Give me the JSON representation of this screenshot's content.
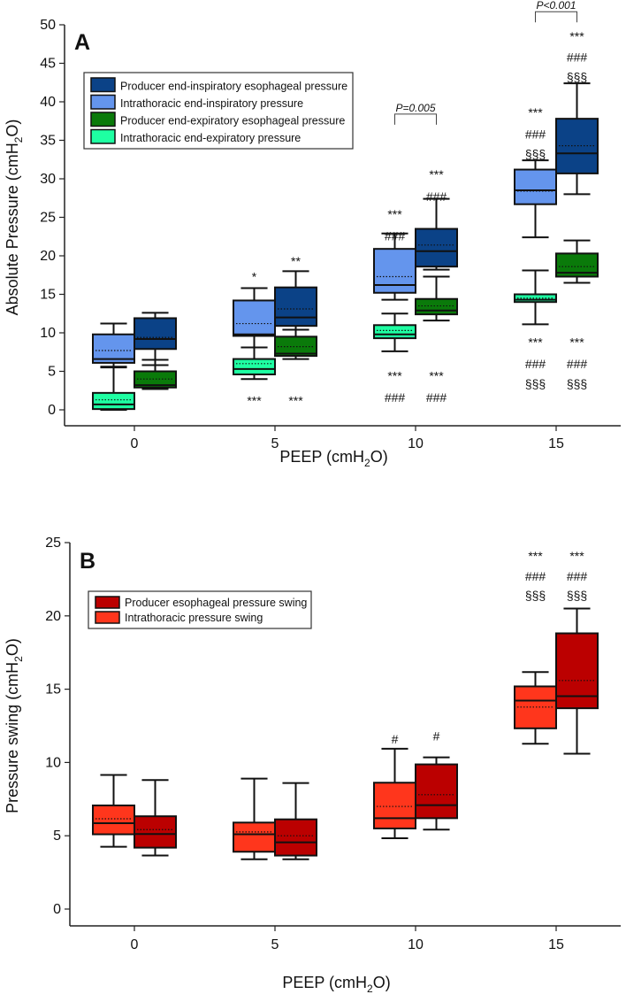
{
  "chart_data": [
    {
      "type": "box",
      "panel_label": "A",
      "ylabel": {
        "pre": "Absolute Pressure (cmH",
        "sub": "2",
        "post": "O)"
      },
      "xlabel": {
        "pre": "PEEP (cmH",
        "sub": "2",
        "post": "O)"
      },
      "categories": [
        "0",
        "5",
        "10",
        "15"
      ],
      "ylim": [
        0,
        50
      ],
      "yticks": [
        0,
        5,
        10,
        15,
        20,
        25,
        30,
        35,
        40,
        45,
        50
      ],
      "legend_position": "top-left",
      "series": [
        {
          "name": "Producer end-inspiratory esophageal pressure",
          "color": "#0b4287",
          "side": "right",
          "boxes": [
            {
              "whislo": 5.8,
              "q1": 7.9,
              "med": 9.2,
              "q3": 11.9,
              "whishi": 12.6,
              "mean": 9.4
            },
            {
              "whislo": 10.4,
              "q1": 10.9,
              "med": 12.0,
              "q3": 15.9,
              "whishi": 18.0,
              "mean": 13.1
            },
            {
              "whislo": 18.2,
              "q1": 18.6,
              "med": 20.6,
              "q3": 23.5,
              "whishi": 27.4,
              "mean": 21.4
            },
            {
              "whislo": 28.0,
              "q1": 30.7,
              "med": 33.3,
              "q3": 37.8,
              "whishi": 42.4,
              "mean": 34.3
            }
          ]
        },
        {
          "name": "Intrathoracic end-inspiratory pressure",
          "color": "#6495ed",
          "side": "left",
          "boxes": [
            {
              "whislo": 5.6,
              "q1": 6.1,
              "med": 6.6,
              "q3": 9.8,
              "whishi": 11.2,
              "mean": 7.7
            },
            {
              "whislo": 8.1,
              "q1": 9.6,
              "med": 9.8,
              "q3": 14.2,
              "whishi": 15.8,
              "mean": 11.2
            },
            {
              "whislo": 14.3,
              "q1": 15.2,
              "med": 16.2,
              "q3": 20.9,
              "whishi": 22.9,
              "mean": 17.3
            },
            {
              "whislo": 22.4,
              "q1": 26.7,
              "med": 28.5,
              "q3": 31.2,
              "whishi": 32.4,
              "mean": 28.4
            }
          ]
        },
        {
          "name": "Producer end-expiratory esophageal pressure",
          "color": "#0a7a0a",
          "side": "right",
          "boxes": [
            {
              "whislo": 2.7,
              "q1": 2.9,
              "med": 3.2,
              "q3": 5.0,
              "whishi": 6.5,
              "mean": 4.0
            },
            {
              "whislo": 6.6,
              "q1": 7.0,
              "med": 7.3,
              "q3": 9.5,
              "whishi": 10.4,
              "mean": 8.2
            },
            {
              "whislo": 11.6,
              "q1": 12.4,
              "med": 12.9,
              "q3": 14.4,
              "whishi": 17.3,
              "mean": 13.5
            },
            {
              "whislo": 16.5,
              "q1": 17.3,
              "med": 17.8,
              "q3": 20.3,
              "whishi": 22.0,
              "mean": 18.6
            }
          ]
        },
        {
          "name": "Intrathoracic end-expiratory pressure",
          "color": "#1effa2",
          "side": "left",
          "boxes": [
            {
              "whislo": 0.0,
              "q1": 0.1,
              "med": 0.7,
              "q3": 2.2,
              "whishi": 5.5,
              "mean": 1.3
            },
            {
              "whislo": 4.0,
              "q1": 4.6,
              "med": 5.3,
              "q3": 6.6,
              "whishi": 8.1,
              "mean": 6.0
            },
            {
              "whislo": 7.6,
              "q1": 9.3,
              "med": 9.8,
              "q3": 11.0,
              "whishi": 12.5,
              "mean": 10.3
            },
            {
              "whislo": 11.1,
              "q1": 14.0,
              "med": 14.3,
              "q3": 15.0,
              "whishi": 18.1,
              "mean": 14.5
            }
          ]
        }
      ],
      "annotations": [
        {
          "cat": 1,
          "side": "left",
          "y": 17.3,
          "text": "*"
        },
        {
          "cat": 1,
          "side": "right",
          "y": 19.3,
          "text": "**"
        },
        {
          "cat": 1,
          "side": "left",
          "y": 1.2,
          "text": "***"
        },
        {
          "cat": 1,
          "side": "right",
          "y": 1.2,
          "text": "***"
        },
        {
          "cat": 2,
          "side": "left",
          "y": 25.4,
          "text": "***"
        },
        {
          "cat": 2,
          "side": "left",
          "y": 22.6,
          "text": "###"
        },
        {
          "cat": 2,
          "side": "right",
          "y": 30.6,
          "text": "***"
        },
        {
          "cat": 2,
          "side": "right",
          "y": 27.7,
          "text": "###"
        },
        {
          "cat": 2,
          "side": "left",
          "y": 4.4,
          "text": "***"
        },
        {
          "cat": 2,
          "side": "left",
          "y": 1.6,
          "text": "###"
        },
        {
          "cat": 2,
          "side": "right",
          "y": 4.4,
          "text": "***"
        },
        {
          "cat": 2,
          "side": "right",
          "y": 1.6,
          "text": "###"
        },
        {
          "cat": 3,
          "side": "left",
          "y": 38.6,
          "text": "***"
        },
        {
          "cat": 3,
          "side": "left",
          "y": 35.8,
          "text": "###"
        },
        {
          "cat": 3,
          "side": "left",
          "y": 33.2,
          "text": "§§§"
        },
        {
          "cat": 3,
          "side": "right",
          "y": 48.5,
          "text": "***"
        },
        {
          "cat": 3,
          "side": "right",
          "y": 45.8,
          "text": "###"
        },
        {
          "cat": 3,
          "side": "right",
          "y": 43.2,
          "text": "§§§"
        },
        {
          "cat": 3,
          "side": "left",
          "y": 8.8,
          "text": "***"
        },
        {
          "cat": 3,
          "side": "left",
          "y": 6.0,
          "text": "###"
        },
        {
          "cat": 3,
          "side": "left",
          "y": 3.4,
          "text": "§§§"
        },
        {
          "cat": 3,
          "side": "right",
          "y": 8.8,
          "text": "***"
        },
        {
          "cat": 3,
          "side": "right",
          "y": 6.0,
          "text": "###"
        },
        {
          "cat": 3,
          "side": "right",
          "y": 3.4,
          "text": "§§§"
        }
      ],
      "brackets": [
        {
          "cat": 2,
          "y": 38.4,
          "text": "P=0.005"
        },
        {
          "cat": 3,
          "y": 51.7,
          "text": "P<0.001"
        }
      ]
    },
    {
      "type": "box",
      "panel_label": "B",
      "ylabel": {
        "pre": "Pressure swing (cmH",
        "sub": "2",
        "post": "O)"
      },
      "xlabel": {
        "pre": "PEEP (cmH",
        "sub": "2",
        "post": "O)"
      },
      "categories": [
        "0",
        "5",
        "10",
        "15"
      ],
      "ylim": [
        0,
        25
      ],
      "yticks": [
        0,
        5,
        10,
        15,
        20,
        25
      ],
      "legend_position": "top-left",
      "series": [
        {
          "name": "Producer esophageal pressure swing",
          "color": "#bb0000",
          "side": "right",
          "boxes": [
            {
              "whislo": 3.65,
              "q1": 4.19,
              "med": 5.12,
              "q3": 6.33,
              "whishi": 8.8,
              "mean": 5.42
            },
            {
              "whislo": 3.4,
              "q1": 3.65,
              "med": 4.55,
              "q3": 6.12,
              "whishi": 8.6,
              "mean": 5.0
            },
            {
              "whislo": 5.42,
              "q1": 6.2,
              "med": 7.09,
              "q3": 9.87,
              "whishi": 10.35,
              "mean": 7.8
            },
            {
              "whislo": 10.6,
              "q1": 13.7,
              "med": 14.52,
              "q3": 18.81,
              "whishi": 20.5,
              "mean": 15.59
            }
          ]
        },
        {
          "name": "Intrathoracic pressure swing",
          "color": "#ff361c",
          "side": "left",
          "boxes": [
            {
              "whislo": 4.25,
              "q1": 5.1,
              "med": 5.86,
              "q3": 7.07,
              "whishi": 9.15,
              "mean": 6.16
            },
            {
              "whislo": 3.4,
              "q1": 3.91,
              "med": 5.1,
              "q3": 5.9,
              "whishi": 8.9,
              "mean": 5.26
            },
            {
              "whislo": 4.83,
              "q1": 5.5,
              "med": 6.2,
              "q3": 8.62,
              "whishi": 10.94,
              "mean": 7.0
            },
            {
              "whislo": 11.28,
              "q1": 12.33,
              "med": 14.22,
              "q3": 15.19,
              "whishi": 16.17,
              "mean": 13.78
            }
          ]
        }
      ],
      "annotations": [
        {
          "cat": 2,
          "side": "left",
          "y": 11.6,
          "text": "#"
        },
        {
          "cat": 2,
          "side": "right",
          "y": 11.8,
          "text": "#"
        },
        {
          "cat": 3,
          "side": "left",
          "y": 24.1,
          "text": "***"
        },
        {
          "cat": 3,
          "side": "left",
          "y": 22.7,
          "text": "###"
        },
        {
          "cat": 3,
          "side": "left",
          "y": 21.4,
          "text": "§§§"
        },
        {
          "cat": 3,
          "side": "right",
          "y": 24.1,
          "text": "***"
        },
        {
          "cat": 3,
          "side": "right",
          "y": 22.7,
          "text": "###"
        },
        {
          "cat": 3,
          "side": "right",
          "y": 21.4,
          "text": "§§§"
        }
      ],
      "brackets": []
    }
  ]
}
